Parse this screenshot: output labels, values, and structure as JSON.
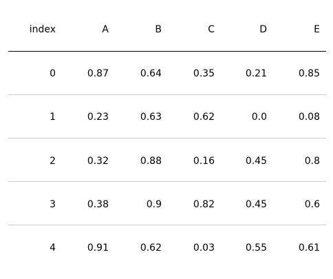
{
  "chart_data": {
    "type": "table",
    "columns": [
      "index",
      "A",
      "B",
      "C",
      "D",
      "E"
    ],
    "rows": [
      [
        "0",
        "0.87",
        "0.64",
        "0.35",
        "0.21",
        "0.85"
      ],
      [
        "1",
        "0.23",
        "0.63",
        "0.62",
        "0.0",
        "0.08"
      ],
      [
        "2",
        "0.32",
        "0.88",
        "0.16",
        "0.45",
        "0.8"
      ],
      [
        "3",
        "0.38",
        "0.9",
        "0.82",
        "0.45",
        "0.6"
      ],
      [
        "4",
        "0.91",
        "0.62",
        "0.03",
        "0.55",
        "0.61"
      ]
    ],
    "colors": {
      "text": "#000000",
      "header_rule": "#000000",
      "row_rule": "#cccccc",
      "background": "#ffffff"
    }
  }
}
